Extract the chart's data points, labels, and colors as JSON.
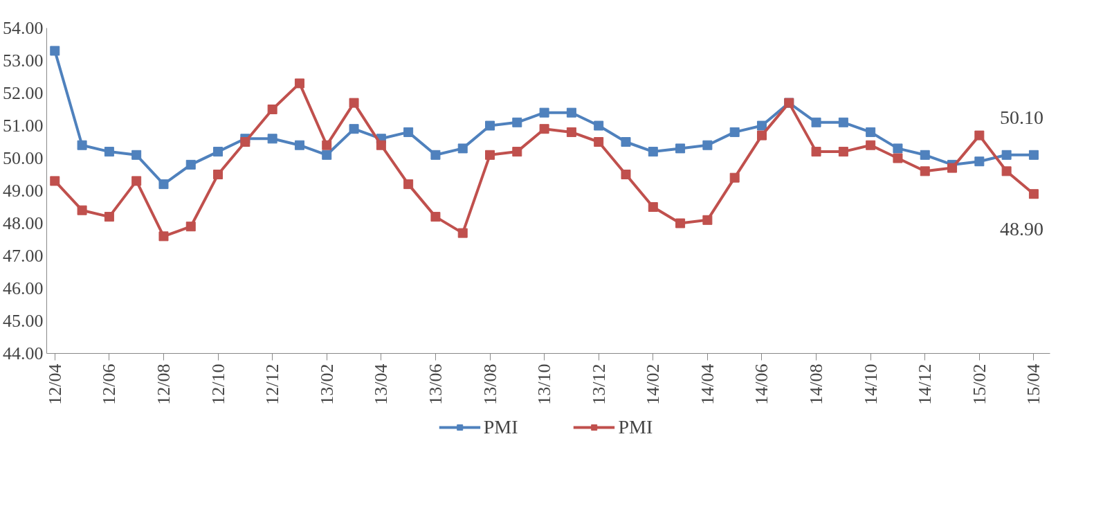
{
  "chart_data": {
    "type": "line",
    "categories": [
      "12/04",
      null,
      "12/06",
      null,
      "12/08",
      null,
      "12/10",
      null,
      "12/12",
      null,
      "13/02",
      null,
      "13/04",
      null,
      "13/06",
      null,
      "13/08",
      null,
      "13/10",
      null,
      "13/12",
      null,
      "14/02",
      null,
      "14/04",
      null,
      "14/06",
      null,
      "14/08",
      null,
      "14/10",
      null,
      "14/12",
      null,
      "15/02",
      null,
      "15/04"
    ],
    "series": [
      {
        "name": "PMI",
        "color": "#4f81bd",
        "values": [
          53.3,
          50.4,
          50.2,
          50.1,
          49.2,
          49.8,
          50.2,
          50.6,
          50.6,
          50.4,
          50.1,
          50.9,
          50.6,
          50.8,
          50.1,
          50.3,
          51.0,
          51.1,
          51.4,
          51.4,
          51.0,
          50.5,
          50.2,
          50.3,
          50.4,
          50.8,
          51.0,
          51.7,
          51.1,
          51.1,
          50.8,
          50.3,
          50.1,
          49.8,
          49.9,
          50.1,
          50.1
        ]
      },
      {
        "name": "PMI",
        "color": "#c0504d",
        "values": [
          49.3,
          48.4,
          48.2,
          49.3,
          47.6,
          47.9,
          49.5,
          50.5,
          51.5,
          52.3,
          50.4,
          51.7,
          50.4,
          49.2,
          48.2,
          47.7,
          50.1,
          50.2,
          50.9,
          50.8,
          50.5,
          49.5,
          48.5,
          48.0,
          48.1,
          49.4,
          50.7,
          51.7,
          50.2,
          50.2,
          50.4,
          50.0,
          49.6,
          49.7,
          50.7,
          49.6,
          48.9
        ]
      }
    ],
    "ylim": [
      44,
      54
    ],
    "yticks": [
      {
        "value": 44,
        "label": "44.00"
      },
      {
        "value": 45,
        "label": "45.00"
      },
      {
        "value": 46,
        "label": "46.00"
      },
      {
        "value": 47,
        "label": "47.00"
      },
      {
        "value": 48,
        "label": "48.00"
      },
      {
        "value": 49,
        "label": "49.00"
      },
      {
        "value": 50,
        "label": "50.00"
      },
      {
        "value": 51,
        "label": "51.00"
      },
      {
        "value": 52,
        "label": "52.00"
      },
      {
        "value": 53,
        "label": "53.00"
      },
      {
        "value": 54,
        "label": "54.00"
      }
    ],
    "annotations": [
      {
        "text": "50.10",
        "x": "15/04",
        "y": 50.1
      },
      {
        "text": "48.90",
        "x": "15/04",
        "y": 48.9
      }
    ],
    "grid": false,
    "legend": "bottom",
    "marker": "square",
    "line_style": "solid"
  }
}
